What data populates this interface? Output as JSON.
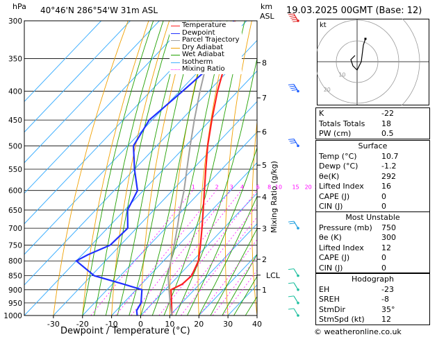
{
  "header": {
    "hpa_unit": "hPa",
    "location": "40°46'N  286°54'W  31m  ASL",
    "km_unit": "km",
    "asl_unit": "ASL",
    "date": "19.03.2025  00GMT  (Base: 12)",
    "hodo_unit": "kt"
  },
  "xaxis": {
    "label": "Dewpoint / Temperature (°C)"
  },
  "yaxis_right": {
    "label": "Mixing Ratio (g/kg)"
  },
  "footer": {
    "copyright": "© weatheronline.co.uk"
  },
  "legend": [
    {
      "label": "Temperature",
      "color": "#ff2020"
    },
    {
      "label": "Dewpoint",
      "color": "#2030ff"
    },
    {
      "label": "Parcel Trajectory",
      "color": "#a0a0a0"
    },
    {
      "label": "Dry Adiabat",
      "color": "#f0a000"
    },
    {
      "label": "Wet Adiabat",
      "color": "#20a000"
    },
    {
      "label": "Isotherm",
      "color": "#40b0ff"
    },
    {
      "label": "Mixing Ratio",
      "color": "#ff20ff"
    }
  ],
  "chart_data": {
    "type": "line",
    "pressure_levels": [
      1000,
      950,
      900,
      850,
      800,
      750,
      700,
      650,
      600,
      550,
      500,
      450,
      400,
      350,
      300
    ],
    "temp_ticks": [
      -30,
      -20,
      -10,
      0,
      10,
      20,
      30,
      40
    ],
    "xlim": [
      -40,
      40
    ],
    "ylim": [
      1000,
      300
    ],
    "km_ticks": [
      {
        "label": "8",
        "p": 356
      },
      {
        "label": "7",
        "p": 411
      },
      {
        "label": "6",
        "p": 472
      },
      {
        "label": "5",
        "p": 541
      },
      {
        "label": "4",
        "p": 616
      },
      {
        "label": "3",
        "p": 701
      },
      {
        "label": "2",
        "p": 795
      },
      {
        "label": "LCL",
        "p": 848
      },
      {
        "label": "1",
        "p": 900
      }
    ],
    "mixing_ratio_labels": [
      "1",
      "2",
      "3",
      "4",
      "6",
      "8",
      "10",
      "15",
      "20",
      "25"
    ],
    "mixing_ratio_values": [
      1,
      2,
      3,
      4,
      6,
      8,
      10,
      15,
      20,
      25
    ],
    "series": [
      {
        "name": "Temperature",
        "p": [
          1000,
          950,
          900,
          880,
          850,
          800,
          750,
          700,
          650,
          600,
          550,
          500,
          450,
          400,
          350,
          320,
          300
        ],
        "t": [
          10.7,
          6.5,
          2.0,
          4.0,
          4.5,
          2.0,
          -2.5,
          -7.5,
          -13.0,
          -19.0,
          -25.5,
          -32.5,
          -39.5,
          -47.0,
          -54.5,
          -60.0,
          -64.0
        ]
      },
      {
        "name": "Dewpoint",
        "p": [
          1000,
          980,
          950,
          900,
          880,
          850,
          800,
          780,
          750,
          700,
          650,
          600,
          550,
          500,
          450,
          400,
          350,
          300
        ],
        "t": [
          -1.2,
          -3.0,
          -4.0,
          -8.0,
          -16.0,
          -29.0,
          -40.0,
          -38.0,
          -33.5,
          -33.0,
          -39.0,
          -42.0,
          -50.0,
          -58.0,
          -61.0,
          -59.0,
          -57.0,
          -64.5
        ]
      },
      {
        "name": "Parcel Trajectory",
        "p": [
          1000,
          950,
          900,
          848,
          800,
          750,
          700,
          650,
          600,
          550,
          500,
          450,
          400,
          350,
          300
        ],
        "t": [
          10.7,
          6.0,
          1.3,
          -3.8,
          -7.5,
          -11.5,
          -16.0,
          -21.0,
          -26.0,
          -32.0,
          -38.5,
          -45.5,
          -53.0,
          -61.0,
          -69.0
        ]
      }
    ],
    "wind_barbs_kt": [
      {
        "p": 300,
        "speed": 55
      },
      {
        "p": 400,
        "speed": 40
      },
      {
        "p": 500,
        "speed": 30
      },
      {
        "p": 700,
        "speed": 20
      },
      {
        "p": 850,
        "speed": 12
      },
      {
        "p": 900,
        "speed": 10
      },
      {
        "p": 950,
        "speed": 8
      },
      {
        "p": 1000,
        "speed": 5
      }
    ],
    "hodograph": {
      "ring_labels": [
        "10",
        "20",
        "30"
      ],
      "u_kt": [
        -1,
        -3,
        -2,
        0,
        2,
        3,
        4
      ],
      "v_kt": [
        3,
        1,
        -2,
        -4,
        0,
        8,
        11
      ]
    }
  },
  "indices": [
    {
      "key": "K",
      "value": "-22"
    },
    {
      "key": "Totals Totals",
      "value": "18"
    },
    {
      "key": "PW (cm)",
      "value": "0.5"
    }
  ],
  "surface": {
    "title": "Surface",
    "rows": [
      {
        "key": "Temp (°C)",
        "value": "10.7"
      },
      {
        "key": "Dewp (°C)",
        "value": "-1.2"
      },
      {
        "key": "θe(K)",
        "value": "292"
      },
      {
        "key": "Lifted Index",
        "value": "16"
      },
      {
        "key": "CAPE (J)",
        "value": "0"
      },
      {
        "key": "CIN (J)",
        "value": "0"
      }
    ]
  },
  "most_unstable": {
    "title": "Most Unstable",
    "rows": [
      {
        "key": "Pressure (mb)",
        "value": "750"
      },
      {
        "key": "θe (K)",
        "value": "300"
      },
      {
        "key": "Lifted Index",
        "value": "12"
      },
      {
        "key": "CAPE (J)",
        "value": "0"
      },
      {
        "key": "CIN (J)",
        "value": "0"
      }
    ]
  },
  "hodograph_table": {
    "title": "Hodograph",
    "rows": [
      {
        "key": "EH",
        "value": "-23"
      },
      {
        "key": "SREH",
        "value": "-8"
      },
      {
        "key": "StmDir",
        "value": "35°"
      },
      {
        "key": "StmSpd (kt)",
        "value": "12"
      }
    ]
  }
}
